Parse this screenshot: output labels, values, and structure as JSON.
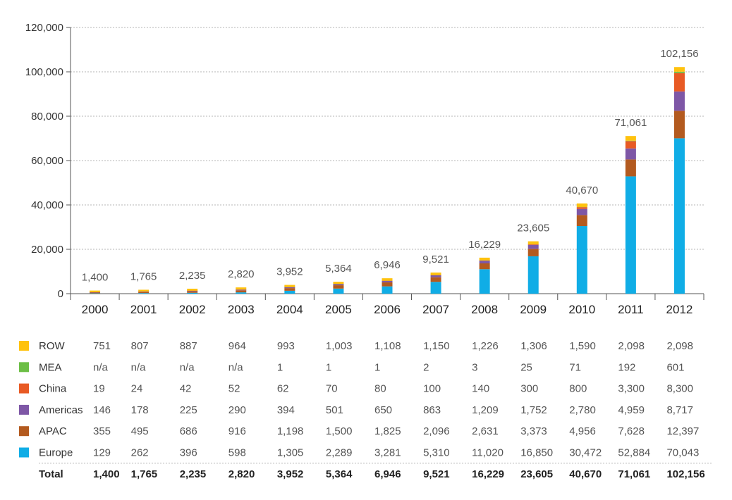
{
  "chart_data": {
    "type": "bar",
    "stacked": true,
    "title": "",
    "xlabel": "",
    "ylabel": "",
    "ylim": [
      0,
      120000
    ],
    "y_ticks": [
      "0",
      "20,000",
      "40,000",
      "60,000",
      "80,000",
      "100,000",
      "120,000"
    ],
    "grid": true,
    "legend_placement": "table-left",
    "categories": [
      "2000",
      "2001",
      "2002",
      "2003",
      "2004",
      "2005",
      "2006",
      "2007",
      "2008",
      "2009",
      "2010",
      "2011",
      "2012"
    ],
    "series": [
      {
        "name": "Europe",
        "color": "#10ADE6",
        "values": [
          129,
          262,
          396,
          598,
          1305,
          2289,
          3281,
          5310,
          11020,
          16850,
          30472,
          52884,
          70043
        ]
      },
      {
        "name": "APAC",
        "color": "#B35A1F",
        "values": [
          355,
          495,
          686,
          916,
          1198,
          1500,
          1825,
          2096,
          2631,
          3373,
          4956,
          7628,
          12397
        ]
      },
      {
        "name": "Americas",
        "color": "#7E57A6",
        "values": [
          146,
          178,
          225,
          290,
          394,
          501,
          650,
          863,
          1209,
          1752,
          2780,
          4959,
          8717
        ]
      },
      {
        "name": "China",
        "color": "#E85A24",
        "values": [
          19,
          24,
          42,
          52,
          62,
          70,
          80,
          100,
          140,
          300,
          800,
          3300,
          8300
        ]
      },
      {
        "name": "MEA",
        "color": "#6CBE45",
        "values": [
          null,
          null,
          null,
          null,
          1,
          1,
          1,
          2,
          3,
          25,
          71,
          192,
          601
        ]
      },
      {
        "name": "ROW",
        "color": "#FFC20E",
        "values": [
          751,
          807,
          887,
          964,
          993,
          1003,
          1108,
          1150,
          1226,
          1306,
          1590,
          2098,
          2098
        ]
      }
    ],
    "totals": [
      1400,
      1765,
      2235,
      2820,
      3952,
      5364,
      6946,
      9521,
      16229,
      23605,
      40670,
      71061,
      102156
    ],
    "total_labels": [
      "1,400",
      "1,765",
      "2,235",
      "2,820",
      "3,952",
      "5,364",
      "6,946",
      "9,521",
      "16,229",
      "23,605",
      "40,670",
      "71,061",
      "102,156"
    ],
    "table": {
      "rows": [
        {
          "name": "ROW",
          "color": "#FFC20E",
          "cells": [
            "751",
            "807",
            "887",
            "964",
            "993",
            "1,003",
            "1,108",
            "1,150",
            "1,226",
            "1,306",
            "1,590",
            "2,098",
            "2,098"
          ]
        },
        {
          "name": "MEA",
          "color": "#6CBE45",
          "cells": [
            "n/a",
            "n/a",
            "n/a",
            "n/a",
            "1",
            "1",
            "1",
            "2",
            "3",
            "25",
            "71",
            "192",
            "601"
          ]
        },
        {
          "name": "China",
          "color": "#E85A24",
          "cells": [
            "19",
            "24",
            "42",
            "52",
            "62",
            "70",
            "80",
            "100",
            "140",
            "300",
            "800",
            "3,300",
            "8,300"
          ]
        },
        {
          "name": "Americas",
          "color": "#7E57A6",
          "cells": [
            "146",
            "178",
            "225",
            "290",
            "394",
            "501",
            "650",
            "863",
            "1,209",
            "1,752",
            "2,780",
            "4,959",
            "8,717"
          ]
        },
        {
          "name": "APAC",
          "color": "#B35A1F",
          "cells": [
            "355",
            "495",
            "686",
            "916",
            "1,198",
            "1,500",
            "1,825",
            "2,096",
            "2,631",
            "3,373",
            "4,956",
            "7,628",
            "12,397"
          ]
        },
        {
          "name": "Europe",
          "color": "#10ADE6",
          "cells": [
            "129",
            "262",
            "396",
            "598",
            "1,305",
            "2,289",
            "3,281",
            "5,310",
            "11,020",
            "16,850",
            "30,472",
            "52,884",
            "70,043"
          ]
        }
      ],
      "total_row": {
        "name": "Total",
        "cells": [
          "1,400",
          "1,765",
          "2,235",
          "2,820",
          "3,952",
          "5,364",
          "6,946",
          "9,521",
          "16,229",
          "23,605",
          "40,670",
          "71,061",
          "102,156"
        ]
      }
    }
  }
}
